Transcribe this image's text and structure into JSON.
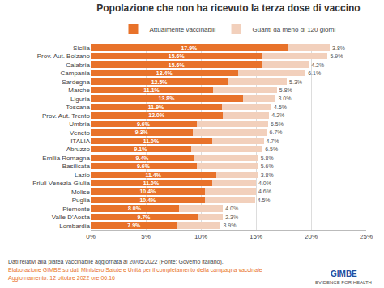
{
  "chart_data": {
    "type": "bar",
    "orientation": "horizontal",
    "stacked": true,
    "data_labels": true,
    "grid": true,
    "legend": "top",
    "title": "Popolazione che non ha ricevuto la terza dose di vaccino",
    "categories": [
      "Sicilia",
      "Prov. Aut. Bolzano",
      "Calabria",
      "Campania",
      "Sardegna",
      "Marche",
      "Liguria",
      "Toscana",
      "Prov. Aut. Trento",
      "Umbria",
      "Veneto",
      "ITALIA",
      "Abruzzo",
      "Emilia Romagna",
      "Basilicata",
      "Lazio",
      "Friuli Venezia Giulia",
      "Molise",
      "Puglia",
      "Piemonte",
      "Valle D'Aosta",
      "Lombardia"
    ],
    "series": [
      {
        "name": "Attualmente vaccinabili",
        "color": "#E8722A",
        "values": [
          17.9,
          15.6,
          15.6,
          13.4,
          12.5,
          11.1,
          13.8,
          11.9,
          12.0,
          9.6,
          9.3,
          11.0,
          9.1,
          9.4,
          9.6,
          11.4,
          11.0,
          10.4,
          10.4,
          8.0,
          9.7,
          7.9
        ],
        "value_labels": [
          "17.9%",
          "15.6%",
          "15.6%",
          "13.4%",
          "12.5%",
          "11.1%",
          "13.8%",
          "11.9%",
          "12.0%",
          "9.6%",
          "9.3%",
          "11.0%",
          "9.1%",
          "9.4%",
          "9.6%",
          "11.4%",
          "11.0%",
          "10.4%",
          "10.4%",
          "8.0%",
          "9.7%",
          "7.9%"
        ]
      },
      {
        "name": "Guariti da meno di 120 giorni",
        "color": "#F2D0BC",
        "values": [
          3.8,
          5.9,
          4.2,
          6.1,
          5.3,
          5.8,
          3.0,
          4.5,
          4.2,
          6.5,
          6.7,
          4.7,
          6.5,
          5.8,
          5.6,
          3.8,
          4.0,
          4.6,
          4.5,
          4.0,
          2.3,
          3.9
        ],
        "value_labels": [
          "3.8%",
          "5.9%",
          "4.2%",
          "6.1%",
          "5.3%",
          "5.8%",
          "3.0%",
          "4.5%",
          "4.2%",
          "6.5%",
          "6.7%",
          "4.7%",
          "6.5%",
          "5.8%",
          "5.6%",
          "3.8%",
          "4.0%",
          "4.6%",
          "4.5%",
          "4.0%",
          "2.3%",
          "3.9%"
        ]
      }
    ],
    "xlim": [
      0,
      25
    ],
    "xticks": [
      {
        "value": 0,
        "label": "0%"
      },
      {
        "value": 5,
        "label": "5%"
      },
      {
        "value": 10,
        "label": "10%"
      },
      {
        "value": 15,
        "label": "15%"
      },
      {
        "value": 20,
        "label": "20%"
      },
      {
        "value": 25,
        "label": "25%"
      }
    ],
    "annotations": [
      {
        "text": "Dati relativi alla platea vaccinabile aggiornata al 20/05/2022 (Fonte: Governo italiano).",
        "color": "#444444"
      },
      {
        "text": "Elaborazione GIMBE su dati Ministero Salute e Unità per il completamento della campagna vaccinale",
        "color": "#E8722A"
      },
      {
        "text": "Aggiornamento: 12 ottobre 2022 ore 06:16",
        "color": "#E8722A"
      },
      {
        "text": "GIMBE",
        "color": "#1F4E9F"
      },
      {
        "text": "EVIDENCE FOR HEALTH",
        "color": "#555555"
      }
    ]
  }
}
